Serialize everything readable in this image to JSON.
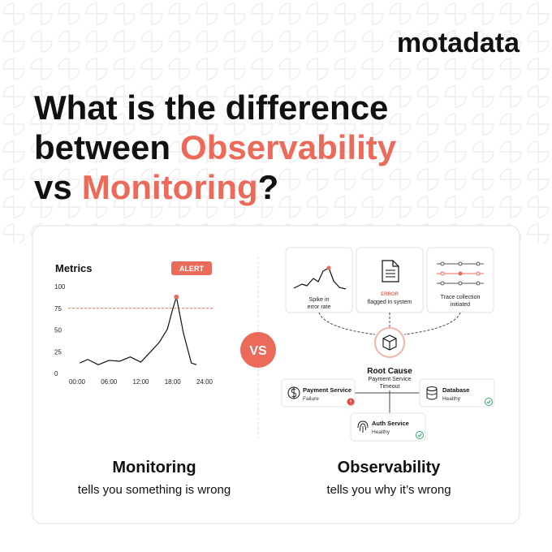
{
  "brand": "motadata",
  "headline": {
    "line1": "What is the difference",
    "line2": "between",
    "highlight1": "Observability",
    "line3": "vs",
    "highlight2": "Monitoring",
    "end": "?"
  },
  "vs_badge": "VS",
  "monitoring": {
    "chart_data": {
      "type": "line",
      "title": "Metrics",
      "badge": "ALERT",
      "x": [
        0.5,
        2,
        4,
        6,
        8,
        10,
        12,
        14,
        15.5,
        17,
        18,
        18.7,
        20,
        21.5,
        22.5
      ],
      "values": [
        12,
        16,
        10,
        15,
        14,
        19,
        13,
        26,
        36,
        51,
        74,
        88,
        47,
        12,
        10
      ],
      "color": "#111111",
      "threshold": 75,
      "threshold_color": "#ec6a5a",
      "alert_point": 11,
      "xlim": [
        0,
        24
      ],
      "xticks": [
        {
          "value": 0,
          "label": "00:00"
        },
        {
          "value": 6,
          "label": "06:00"
        },
        {
          "value": 12,
          "label": "12:00"
        },
        {
          "value": 18,
          "label": "18:00"
        },
        {
          "value": 24,
          "label": "24:00"
        }
      ],
      "ylim": [
        0,
        100
      ],
      "yticks": [
        0,
        25,
        50,
        75,
        100
      ]
    },
    "heading": "Monitoring",
    "caption": "tells you something is wrong"
  },
  "observability": {
    "cards": [
      {
        "lines": [
          "Spike in",
          "error rate"
        ]
      },
      {
        "tag": "ERROR",
        "lines": [
          "flagged in system"
        ]
      },
      {
        "lines": [
          "Trace collection",
          "initiated"
        ]
      }
    ],
    "root_cause": {
      "title": "Root Cause",
      "lines": [
        "Payment Service",
        "Timeout"
      ]
    },
    "services": [
      {
        "name": "Payment Service",
        "status": "Failure"
      },
      {
        "name": "Database",
        "status": "Healthy"
      },
      {
        "name": "Auth Service",
        "status": "Healthy"
      }
    ],
    "heading": "Observability",
    "caption": "tells you why it’s wrong"
  }
}
